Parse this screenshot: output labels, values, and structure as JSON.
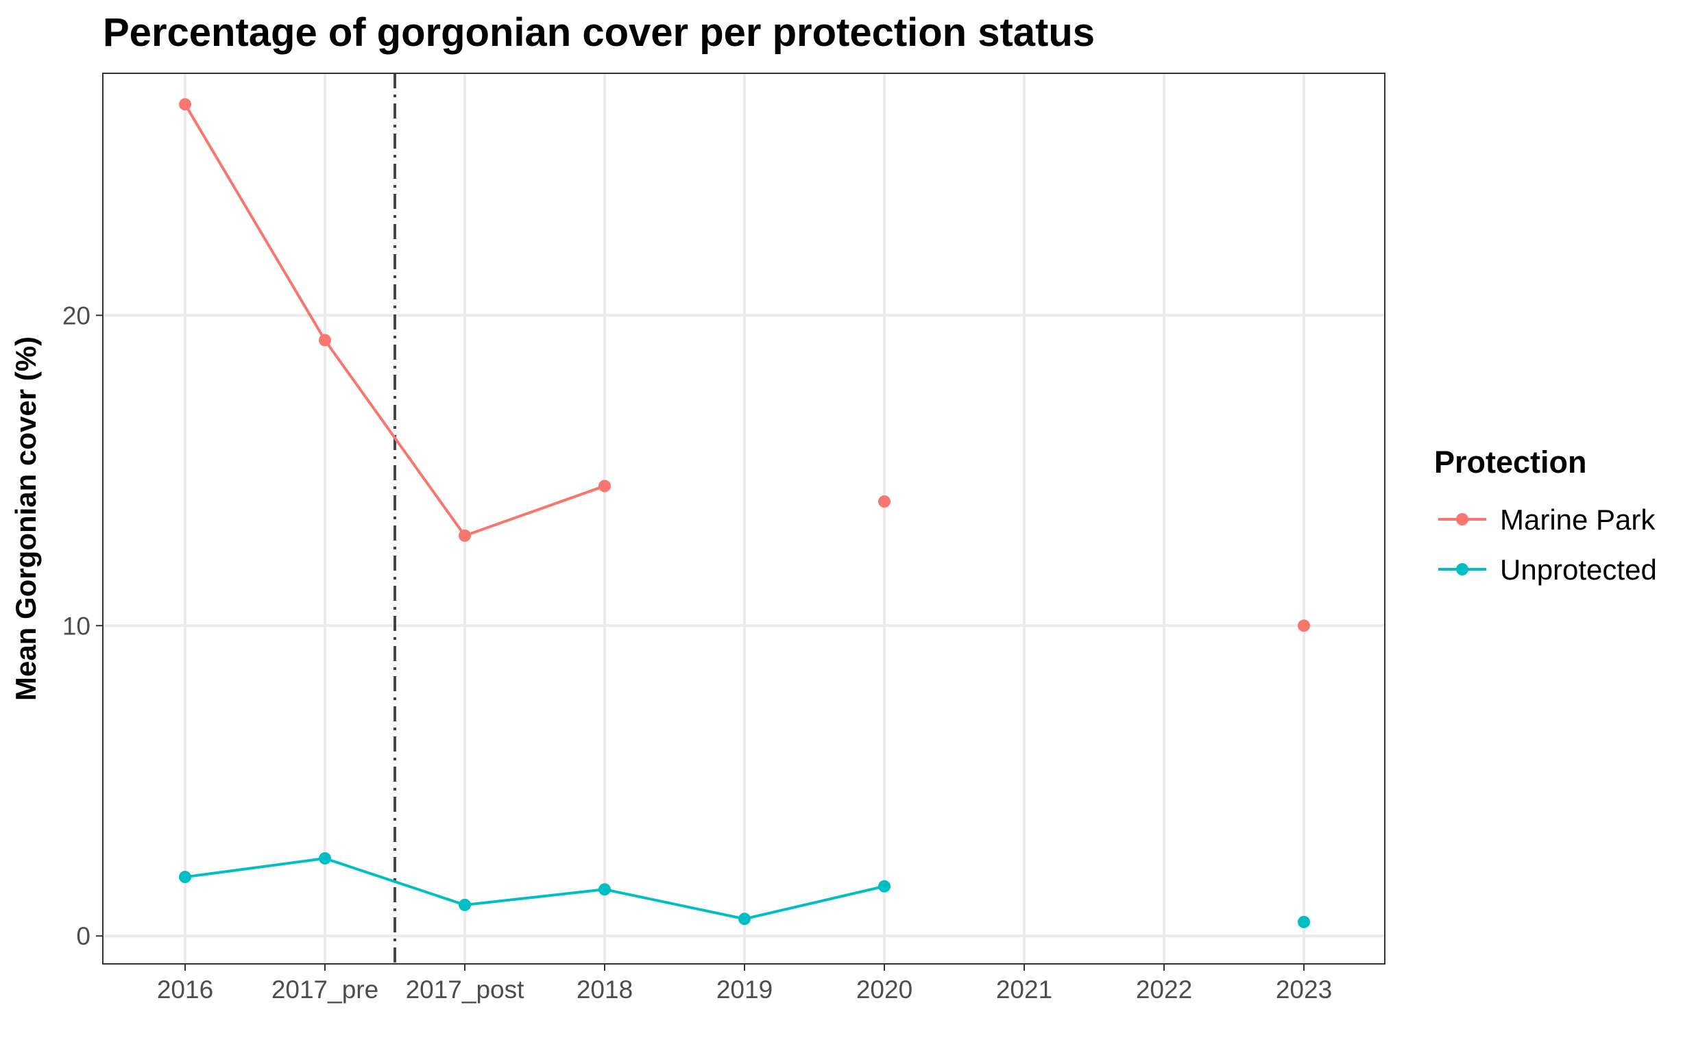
{
  "chart_data": {
    "type": "line",
    "title": "Percentage of gorgonian cover per protection status",
    "xlabel": "",
    "ylabel": "Mean Gorgonian cover (%)",
    "categories": [
      "2016",
      "2017_pre",
      "2017_post",
      "2018",
      "2019",
      "2020",
      "2021",
      "2022",
      "2023"
    ],
    "ylim": [
      -0.9,
      27.8
    ],
    "yticks": [
      0,
      10,
      20
    ],
    "grid": true,
    "legend": {
      "title": "Protection",
      "position": "right"
    },
    "vline": {
      "between": [
        "2017_pre",
        "2017_post"
      ],
      "style": "dashdot",
      "color": "#444444"
    },
    "series": [
      {
        "name": "Marine Park",
        "color": "#F8766D",
        "values": [
          26.8,
          19.2,
          12.9,
          14.5,
          null,
          14.0,
          null,
          null,
          10.0
        ]
      },
      {
        "name": "Unprotected",
        "color": "#00BFC4",
        "values": [
          1.9,
          2.5,
          1.0,
          1.5,
          0.55,
          1.6,
          null,
          null,
          0.45
        ]
      }
    ]
  }
}
